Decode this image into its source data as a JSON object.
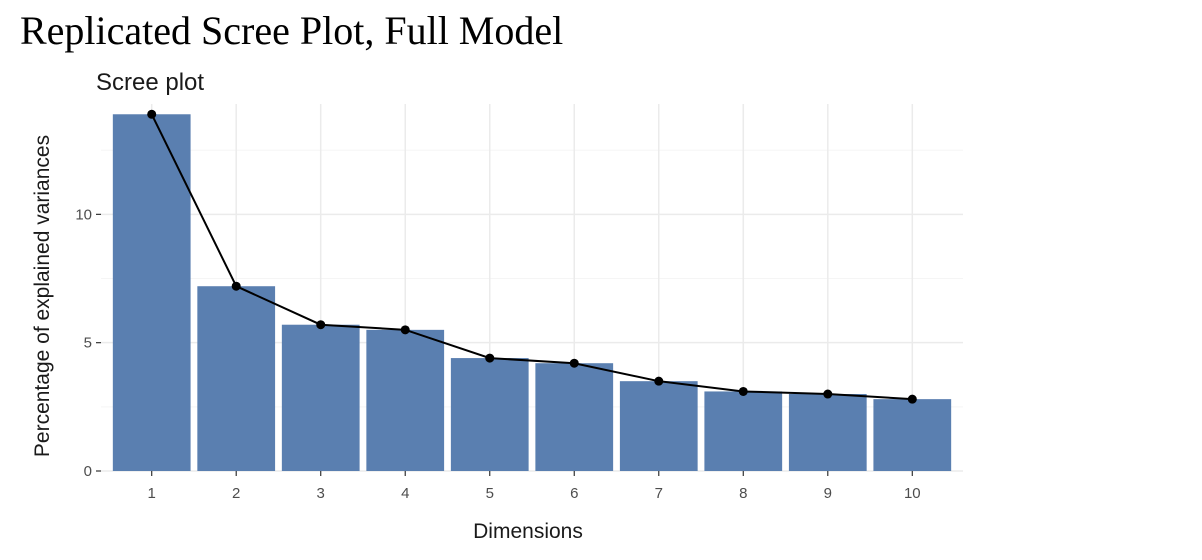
{
  "page": {
    "heading": "Replicated Scree Plot, Full Model"
  },
  "chart_data": {
    "type": "bar",
    "title": "Scree plot",
    "xlabel": "Dimensions",
    "ylabel": "Percentage of explained variances",
    "categories": [
      "1",
      "2",
      "3",
      "4",
      "5",
      "6",
      "7",
      "8",
      "9",
      "10"
    ],
    "values": [
      13.9,
      7.2,
      5.7,
      5.5,
      4.4,
      4.2,
      3.5,
      3.1,
      3.0,
      2.8
    ],
    "line_overlay": true,
    "ylim": [
      0,
      14.3
    ],
    "yticks": [
      0,
      5,
      10
    ],
    "grid": true,
    "legend": "none",
    "colors": {
      "bar": "#5a7fb0",
      "line": "#000000",
      "grid_major": "#ebebeb",
      "grid_minor": "#f5f5f5",
      "tick_text": "#4d4d4d"
    }
  }
}
